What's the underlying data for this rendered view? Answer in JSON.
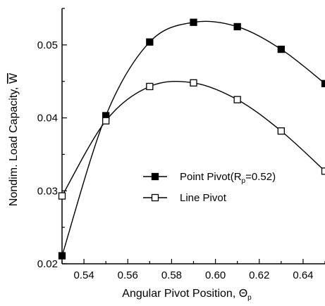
{
  "chart_data": {
    "type": "line",
    "xlabel": "Angular Pivot Position, Θ",
    "xlabel_sub": "p",
    "ylabel": "Nondim. Load Capacity, W",
    "xlim": [
      0.53,
      0.65
    ],
    "ylim": [
      0.02,
      0.055
    ],
    "x_ticks": [
      0.54,
      0.56,
      0.58,
      0.6,
      0.62,
      0.64
    ],
    "x_tick_labels": [
      "0.54",
      "0.56",
      "0.58",
      "0.60",
      "0.62",
      "0.64"
    ],
    "y_ticks": [
      0.02,
      0.03,
      0.04,
      0.05
    ],
    "y_tick_labels": [
      "0.02",
      "0.03",
      "0.04",
      "0.05"
    ],
    "grid": false,
    "legend_position": "lower-right",
    "series": [
      {
        "name": "Point Pivot(R",
        "name_sub": "p",
        "name_tail": "=0.52)",
        "marker": "filled-square",
        "x": [
          0.53,
          0.55,
          0.57,
          0.59,
          0.61,
          0.63,
          0.65
        ],
        "values": [
          0.0211,
          0.0403,
          0.0504,
          0.0531,
          0.0525,
          0.0494,
          0.0447
        ]
      },
      {
        "name": "Line Pivot",
        "marker": "open-square",
        "x": [
          0.53,
          0.55,
          0.57,
          0.59,
          0.61,
          0.63,
          0.65
        ],
        "values": [
          0.0293,
          0.0396,
          0.0443,
          0.0448,
          0.0425,
          0.0382,
          0.0327
        ]
      }
    ]
  }
}
